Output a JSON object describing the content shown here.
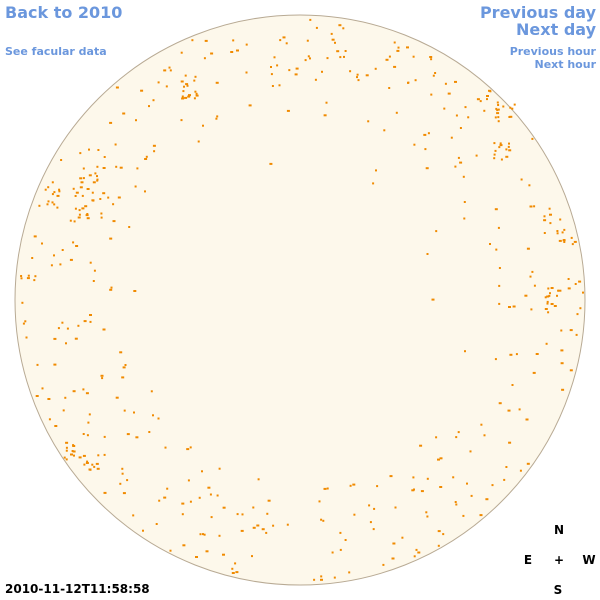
{
  "nav": {
    "back": "Back to 2010",
    "facular": "See facular data",
    "prev_day": "Previous day",
    "next_day": "Next day",
    "prev_hour": "Previous hour",
    "next_hour": "Next hour"
  },
  "timestamp": "2010-11-12T11:58:58",
  "compass": {
    "n": "N",
    "s": "S",
    "e": "E",
    "w": "W",
    "center": "+"
  },
  "colors": {
    "link": "#6b97dd",
    "disk_fill": "#fdf8eb",
    "disk_outline": "#b8aa94",
    "facula": "#f08a00"
  }
}
